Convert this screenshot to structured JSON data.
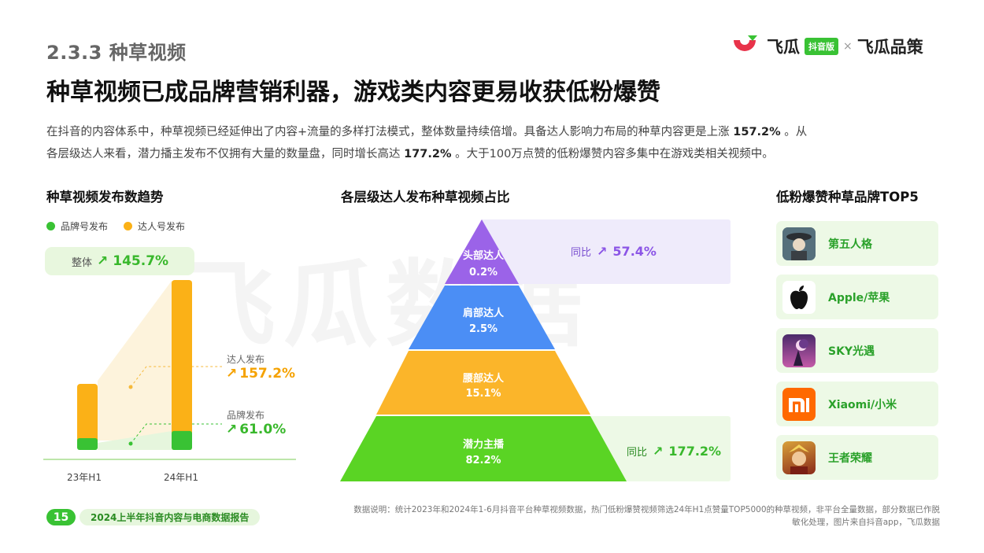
{
  "header": {
    "section_label": "2.3.3 种草视频",
    "headline": "种草视频已成品牌营销利器，游戏类内容更易收获低粉爆赞",
    "intro_line1_a": "在抖音的内容体系中，种草视频已经延伸出了内容+流量的多样打法模式，整体数量持续倍增。具备达人影响力布局的种草内容更是上涨 ",
    "intro_line1_b": "157.2%",
    "intro_line1_c": " 。从",
    "intro_line2_a": "各层级达人来看，潜力播主发布不仅拥有大量的数量盘，同时增长高达 ",
    "intro_line2_b": "177.2%",
    "intro_line2_c": " 。大于100万点赞的低粉爆赞内容多集中在游戏类相关视频中。"
  },
  "logo": {
    "name1": "飞瓜",
    "badge": "抖音版",
    "times": "×",
    "name2": "飞瓜品策"
  },
  "watermark": "飞瓜数据",
  "colors": {
    "green": "#39c234",
    "orange": "#fbb117",
    "purple": "#9b63e8",
    "blue": "#4b8ef5",
    "yellow": "#fbb52a"
  },
  "left_panel": {
    "title": "种草视频发布数趋势",
    "legend": [
      {
        "label": "品牌号发布",
        "color": "#39c234"
      },
      {
        "label": "达人号发布",
        "color": "#fbb117"
      }
    ],
    "overall_label": "整体",
    "overall_value": "145.7%",
    "annotations": {
      "creator_label": "达人发布",
      "creator_value": "157.2%",
      "brand_label": "品牌发布",
      "brand_value": "61.0%"
    }
  },
  "chart_data": [
    {
      "type": "bar",
      "title": "种草视频发布数趋势",
      "categories": [
        "23年H1",
        "24年H1"
      ],
      "series": [
        {
          "name": "品牌号发布",
          "values": [
            1,
            1.61
          ]
        },
        {
          "name": "达人号发布",
          "values": [
            1,
            2.572
          ]
        }
      ],
      "stacked": true,
      "annotations": {
        "整体": "145.7%",
        "达人发布": "157.2%",
        "品牌发布": "61.0%"
      }
    },
    {
      "type": "pyramid",
      "title": "各层级达人发布种草视频占比",
      "categories": [
        "头部达人",
        "肩部达人",
        "腰部达人",
        "潜力主播"
      ],
      "values": [
        0.2,
        2.5,
        15.1,
        82.2
      ],
      "value_labels": [
        "0.2%",
        "2.5%",
        "15.1%",
        "82.2%"
      ],
      "growth_labels": {
        "头部达人": "同比",
        "头部达人_value": "57.4%",
        "潜力主播": "同比",
        "潜力主播_value": "177.2%"
      }
    }
  ],
  "mid_panel": {
    "title": "各层级达人发布种草视频占比",
    "levels": [
      {
        "name": "头部达人",
        "pct": "0.2%"
      },
      {
        "name": "肩部达人",
        "pct": "2.5%"
      },
      {
        "name": "腰部达人",
        "pct": "15.1%"
      },
      {
        "name": "潜力主播",
        "pct": "82.2%"
      }
    ],
    "yoy_label": "同比",
    "top_yoy": "57.4%",
    "bottom_yoy": "177.2%"
  },
  "right_panel": {
    "title": "低粉爆赞种草品牌TOP5",
    "brands": [
      {
        "name": "第五人格",
        "icon": "identity-v-game-icon"
      },
      {
        "name": "Apple/苹果",
        "icon": "apple-logo-icon"
      },
      {
        "name": "SKY光遇",
        "icon": "sky-game-icon"
      },
      {
        "name": "Xiaomi/小米",
        "icon": "xiaomi-logo-icon"
      },
      {
        "name": "王者荣耀",
        "icon": "honor-of-kings-game-icon"
      }
    ]
  },
  "footer": {
    "page_number": "15",
    "report_title": "2024上半年抖音内容与电商数据报告",
    "note_line1": "数据说明：统计2023年和2024年1-6月抖音平台种草视频数据，热门低粉爆赞视频筛选24年H1点赞量TOP5000的种草视频，非平台全量数据，部分数据已作脱",
    "note_line2": "敏化处理，图片来自抖音app，飞瓜数据"
  }
}
